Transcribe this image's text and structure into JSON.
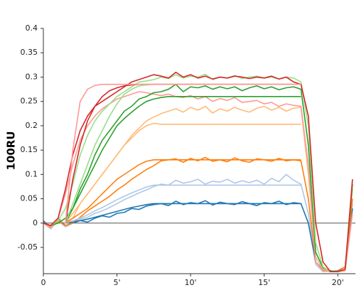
{
  "chart_data": {
    "type": "line",
    "y_label": "100RU",
    "xlim": [
      0,
      21.2
    ],
    "ylim": [
      -0.104,
      0.4
    ],
    "xticks": [
      0,
      {
        "value": 5,
        "label": "5'"
      },
      {
        "value": 10,
        "label": "10'"
      },
      {
        "value": 15,
        "label": "15'"
      },
      {
        "value": 20,
        "label": "20'"
      }
    ],
    "yticks": [
      -0.05,
      0,
      0.05,
      0.1,
      0.15,
      0.2,
      0.25,
      0.3,
      0.35,
      0.4
    ],
    "hline": 0,
    "hline_color": "#666666",
    "x": [
      0,
      0.5,
      1,
      1.5,
      2,
      2.5,
      3,
      3.5,
      4,
      4.5,
      5,
      5.5,
      6,
      6.5,
      7,
      7.5,
      8,
      8.5,
      9,
      9.5,
      10,
      10.5,
      11,
      11.5,
      12,
      12.5,
      13,
      13.5,
      14,
      14.5,
      15,
      15.5,
      16,
      16.5,
      17,
      17.5,
      18,
      18.5,
      19,
      19.5,
      20,
      20.5,
      21
    ],
    "series": [
      {
        "color": "#aec7e8",
        "values": [
          0.0,
          -0.012,
          0.005,
          -0.008,
          0.0,
          0.008,
          0.012,
          0.02,
          0.025,
          0.032,
          0.04,
          0.048,
          0.055,
          0.062,
          0.068,
          0.075,
          0.08,
          0.078,
          0.088,
          0.082,
          0.085,
          0.09,
          0.08,
          0.086,
          0.084,
          0.09,
          0.082,
          0.087,
          0.083,
          0.088,
          0.08,
          0.092,
          0.085,
          0.1,
          0.088,
          0.08,
          0.02,
          -0.085,
          -0.1,
          -0.098,
          -0.1,
          -0.095,
          0.04
        ]
      },
      {
        "color": "#1f77b4",
        "values": [
          0.005,
          -0.01,
          0.01,
          -0.005,
          0.0,
          0.005,
          0.002,
          0.01,
          0.015,
          0.012,
          0.02,
          0.022,
          0.03,
          0.028,
          0.035,
          0.038,
          0.04,
          0.036,
          0.045,
          0.038,
          0.042,
          0.04,
          0.046,
          0.037,
          0.043,
          0.04,
          0.038,
          0.044,
          0.04,
          0.036,
          0.042,
          0.04,
          0.045,
          0.038,
          0.042,
          0.04,
          0.0,
          -0.08,
          -0.095,
          -0.1,
          -0.098,
          -0.09,
          0.03
        ]
      },
      {
        "color": "#ffbb78",
        "values": [
          0.0,
          -0.01,
          0.006,
          0.0,
          0.01,
          0.04,
          0.06,
          0.08,
          0.1,
          0.12,
          0.14,
          0.16,
          0.18,
          0.195,
          0.21,
          0.218,
          0.225,
          0.23,
          0.235,
          0.228,
          0.238,
          0.232,
          0.24,
          0.226,
          0.235,
          0.23,
          0.238,
          0.232,
          0.228,
          0.236,
          0.24,
          0.232,
          0.238,
          0.23,
          0.236,
          0.238,
          0.1,
          -0.07,
          -0.095,
          -0.1,
          -0.1,
          -0.09,
          0.07
        ]
      },
      {
        "color": "#ff7f0e",
        "values": [
          0.0,
          -0.008,
          0.004,
          -0.005,
          0.0,
          0.012,
          0.025,
          0.035,
          0.045,
          0.055,
          0.068,
          0.078,
          0.09,
          0.1,
          0.11,
          0.118,
          0.128,
          0.13,
          0.132,
          0.125,
          0.133,
          0.128,
          0.135,
          0.127,
          0.13,
          0.126,
          0.134,
          0.128,
          0.125,
          0.132,
          0.13,
          0.127,
          0.133,
          0.128,
          0.13,
          0.128,
          0.05,
          -0.08,
          -0.097,
          -0.1,
          -0.099,
          -0.09,
          0.05
        ]
      },
      {
        "color": "#ff9896",
        "values": [
          0.0,
          -0.01,
          0.01,
          0.06,
          0.12,
          0.17,
          0.2,
          0.22,
          0.235,
          0.245,
          0.255,
          0.26,
          0.265,
          0.27,
          0.268,
          0.265,
          0.262,
          0.265,
          0.26,
          0.258,
          0.262,
          0.255,
          0.26,
          0.25,
          0.256,
          0.252,
          0.258,
          0.248,
          0.25,
          0.252,
          0.245,
          0.248,
          0.24,
          0.245,
          0.242,
          0.24,
          0.12,
          -0.08,
          -0.098,
          -0.1,
          -0.1,
          -0.098,
          0.02
        ]
      },
      {
        "color": "#2ca02c",
        "values": [
          0.0,
          -0.005,
          0.0,
          0.01,
          0.03,
          0.07,
          0.1,
          0.14,
          0.17,
          0.19,
          0.21,
          0.23,
          0.24,
          0.255,
          0.26,
          0.268,
          0.27,
          0.275,
          0.285,
          0.27,
          0.28,
          0.278,
          0.282,
          0.275,
          0.28,
          0.276,
          0.28,
          0.272,
          0.278,
          0.282,
          0.276,
          0.28,
          0.274,
          0.278,
          0.28,
          0.275,
          0.16,
          -0.06,
          -0.092,
          -0.098,
          -0.1,
          -0.095,
          0.08
        ]
      },
      {
        "color": "#98df8a",
        "values": [
          0.0,
          -0.005,
          0.005,
          0.03,
          0.08,
          0.14,
          0.18,
          0.21,
          0.23,
          0.245,
          0.26,
          0.27,
          0.28,
          0.29,
          0.292,
          0.295,
          0.3,
          0.297,
          0.305,
          0.298,
          0.302,
          0.3,
          0.306,
          0.295,
          0.3,
          0.298,
          0.303,
          0.297,
          0.3,
          0.302,
          0.298,
          0.3,
          0.296,
          0.3,
          0.298,
          0.29,
          0.2,
          -0.04,
          -0.09,
          -0.1,
          -0.1,
          -0.095,
          0.09
        ]
      },
      {
        "color": "#d62728",
        "values": [
          0.0,
          -0.005,
          0.01,
          0.07,
          0.14,
          0.19,
          0.22,
          0.24,
          0.25,
          0.26,
          0.27,
          0.28,
          0.29,
          0.295,
          0.3,
          0.305,
          0.302,
          0.298,
          0.31,
          0.3,
          0.305,
          0.298,
          0.302,
          0.296,
          0.3,
          0.298,
          0.302,
          0.3,
          0.297,
          0.3,
          0.298,
          0.302,
          0.296,
          0.3,
          0.29,
          0.285,
          0.22,
          0.0,
          -0.08,
          -0.1,
          -0.1,
          -0.095,
          0.09
        ]
      },
      {
        "color": "#1f77b4",
        "values": [
          null,
          null,
          null,
          0,
          0.002,
          0.005,
          0.008,
          0.012,
          0.016,
          0.02,
          0.024,
          0.028,
          0.032,
          0.035,
          0.038,
          0.04,
          0.04,
          0.04,
          0.04,
          0.04,
          0.04,
          0.04,
          0.04,
          0.04,
          0.04,
          0.04,
          0.04,
          0.04,
          0.04,
          0.04,
          0.04,
          0.04,
          0.04,
          0.04,
          0.04,
          0.04,
          null,
          null,
          null,
          null,
          null,
          null,
          null
        ]
      },
      {
        "color": "#aec7e8",
        "values": [
          null,
          null,
          null,
          0,
          0.005,
          0.01,
          0.017,
          0.025,
          0.032,
          0.04,
          0.048,
          0.055,
          0.062,
          0.068,
          0.074,
          0.078,
          0.078,
          0.078,
          0.078,
          0.078,
          0.078,
          0.078,
          0.078,
          0.078,
          0.078,
          0.078,
          0.078,
          0.078,
          0.078,
          0.078,
          0.078,
          0.078,
          0.078,
          0.078,
          0.078,
          0.078,
          null,
          null,
          null,
          null,
          null,
          null,
          null
        ]
      },
      {
        "color": "#ff7f0e",
        "values": [
          null,
          null,
          null,
          0,
          0.01,
          0.02,
          0.03,
          0.045,
          0.06,
          0.075,
          0.09,
          0.1,
          0.11,
          0.12,
          0.127,
          0.13,
          0.13,
          0.13,
          0.13,
          0.13,
          0.13,
          0.13,
          0.13,
          0.13,
          0.13,
          0.13,
          0.13,
          0.13,
          0.13,
          0.13,
          0.13,
          0.13,
          0.13,
          0.13,
          0.13,
          0.13,
          null,
          null,
          null,
          null,
          null,
          null,
          null
        ]
      },
      {
        "color": "#ffbb78",
        "values": [
          null,
          null,
          null,
          0,
          0.02,
          0.04,
          0.06,
          0.08,
          0.1,
          0.12,
          0.14,
          0.16,
          0.175,
          0.19,
          0.2,
          0.205,
          0.203,
          0.203,
          0.203,
          0.203,
          0.203,
          0.203,
          0.203,
          0.203,
          0.203,
          0.203,
          0.203,
          0.203,
          0.203,
          0.203,
          0.203,
          0.203,
          0.203,
          0.203,
          0.203,
          0.203,
          null,
          null,
          null,
          null,
          null,
          null,
          null
        ]
      },
      {
        "color": "#2ca02c",
        "values": [
          null,
          null,
          null,
          0,
          0.03,
          0.06,
          0.09,
          0.12,
          0.15,
          0.175,
          0.2,
          0.215,
          0.228,
          0.24,
          0.25,
          0.255,
          0.258,
          0.26,
          0.26,
          0.26,
          0.26,
          0.26,
          0.26,
          0.26,
          0.26,
          0.26,
          0.26,
          0.26,
          0.26,
          0.26,
          0.26,
          0.26,
          0.26,
          0.26,
          0.26,
          0.26,
          null,
          null,
          null,
          null,
          null,
          null,
          null
        ]
      },
      {
        "color": "#98df8a",
        "values": [
          null,
          null,
          null,
          0,
          0.04,
          0.08,
          0.12,
          0.16,
          0.19,
          0.22,
          0.245,
          0.265,
          0.275,
          0.282,
          0.284,
          0.285,
          0.285,
          0.285,
          0.285,
          0.285,
          0.285,
          0.285,
          0.285,
          0.285,
          0.285,
          0.285,
          0.285,
          0.285,
          0.285,
          0.285,
          0.285,
          0.285,
          0.285,
          0.285,
          0.285,
          0.285,
          null,
          null,
          null,
          null,
          null,
          null,
          null
        ]
      },
      {
        "color": "#d62728",
        "values": [
          null,
          null,
          null,
          0,
          0.09,
          0.16,
          0.21,
          0.24,
          0.26,
          0.272,
          0.278,
          0.282,
          0.284,
          0.285,
          0.285,
          0.285,
          0.285,
          0.285,
          0.285,
          0.285,
          0.285,
          0.285,
          0.285,
          0.285,
          0.285,
          0.285,
          0.285,
          0.285,
          0.285,
          0.285,
          0.285,
          0.285,
          0.285,
          0.285,
          0.285,
          0.285,
          null,
          null,
          null,
          null,
          null,
          null,
          null
        ]
      },
      {
        "color": "#ff9896",
        "values": [
          null,
          null,
          null,
          0,
          0.15,
          0.25,
          0.275,
          0.283,
          0.285,
          0.285,
          0.285,
          0.285,
          0.285,
          0.285,
          0.285,
          0.285,
          0.285,
          0.285,
          0.285,
          0.285,
          0.285,
          0.285,
          0.285,
          0.285,
          0.285,
          0.285,
          0.285,
          0.285,
          0.285,
          0.285,
          0.285,
          0.285,
          0.285,
          0.285,
          0.285,
          0.285,
          null,
          null,
          null,
          null,
          null,
          null,
          null
        ]
      }
    ]
  }
}
